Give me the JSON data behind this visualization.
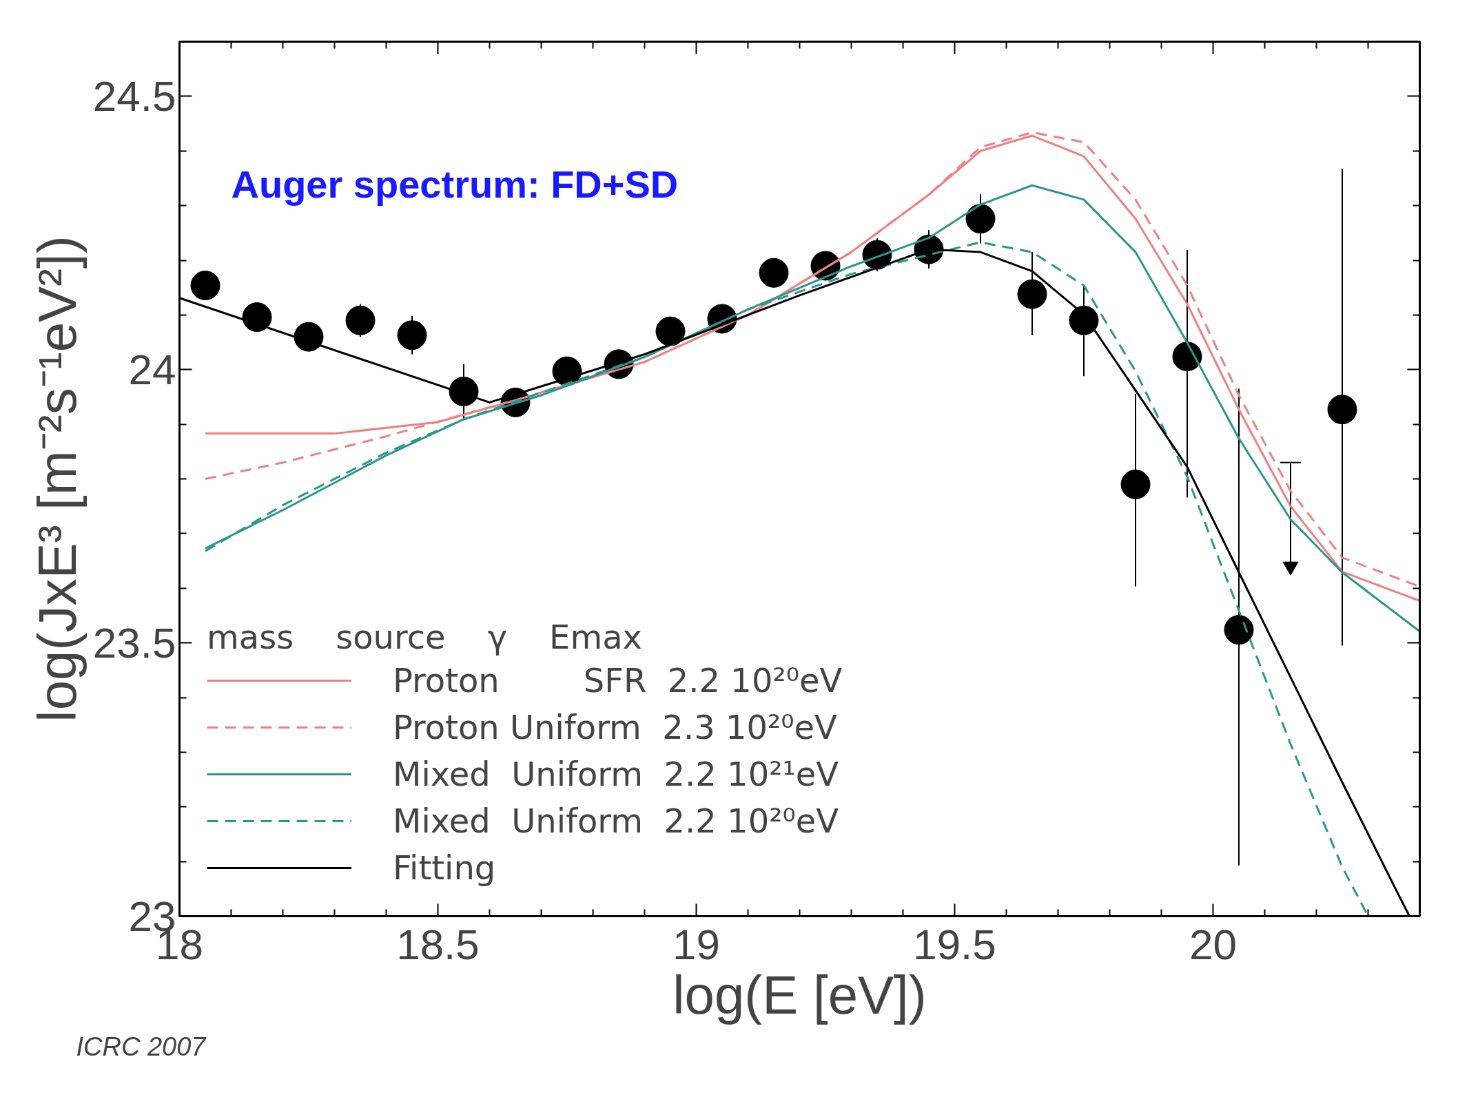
{
  "chart_data": {
    "type": "line",
    "title": null,
    "xlabel": "log(E [eV])",
    "ylabel": "log(JxE³ [m⁻²s⁻¹eV²])",
    "legend_title": "mass    source    γ    Emax",
    "annotations": [
      "Auger spectrum: FD+SD",
      "ICRC 2007"
    ],
    "xlim": [
      18,
      20.4
    ],
    "ylim": [
      23,
      24.6
    ],
    "xticks": [
      18,
      {
        "value": 18.1,
        "label": null
      },
      {
        "value": 18.2,
        "label": null
      },
      {
        "value": 18.3,
        "label": null
      },
      {
        "value": 18.4,
        "label": null
      },
      18.5,
      {
        "value": 18.6,
        "label": null
      },
      {
        "value": 18.7,
        "label": null
      },
      {
        "value": 18.8,
        "label": null
      },
      {
        "value": 18.9,
        "label": null
      },
      19,
      {
        "value": 19.1,
        "label": null
      },
      {
        "value": 19.2,
        "label": null
      },
      {
        "value": 19.3,
        "label": null
      },
      {
        "value": 19.4,
        "label": null
      },
      19.5,
      {
        "value": 19.6,
        "label": null
      },
      {
        "value": 19.7,
        "label": null
      },
      {
        "value": 19.8,
        "label": null
      },
      {
        "value": 19.9,
        "label": null
      },
      20,
      {
        "value": 20.1,
        "label": null
      },
      {
        "value": 20.2,
        "label": null
      },
      {
        "value": 20.3,
        "label": null
      }
    ],
    "yticks": [
      23,
      {
        "value": 23.1,
        "label": null
      },
      {
        "value": 23.2,
        "label": null
      },
      {
        "value": 23.3,
        "label": null
      },
      {
        "value": 23.4,
        "label": null
      },
      23.5,
      {
        "value": 23.6,
        "label": null
      },
      {
        "value": 23.7,
        "label": null
      },
      {
        "value": 23.8,
        "label": null
      },
      {
        "value": 23.9,
        "label": null
      },
      24,
      {
        "value": 24.1,
        "label": null
      },
      {
        "value": 24.2,
        "label": null
      },
      {
        "value": 24.3,
        "label": null
      },
      {
        "value": 24.4,
        "label": null
      },
      24.5
    ],
    "legend": "bottom left",
    "grid": false,
    "series": [
      {
        "name": "Proton        SFR  2.2 10²⁰eV",
        "line_style": "solid",
        "color": "#f08080",
        "x": [
          18.05,
          18.3,
          18.5,
          18.65,
          18.9,
          19.1,
          19.3,
          19.45,
          19.55,
          19.65,
          19.75,
          19.85,
          19.95,
          20.05,
          20.15,
          20.25,
          20.4
        ],
        "values": [
          23.883,
          23.883,
          23.904,
          23.944,
          24.014,
          24.1,
          24.215,
          24.32,
          24.4,
          24.428,
          24.39,
          24.276,
          24.12,
          23.927,
          23.75,
          23.63,
          23.577
        ]
      },
      {
        "name": "Proton Uniform  2.3 10²⁰eV",
        "line_style": "dashed",
        "color": "#f08080",
        "x": [
          18.05,
          18.2,
          18.4,
          18.55,
          18.65,
          18.9,
          19.1,
          19.3,
          19.45,
          19.55,
          19.65,
          19.75,
          19.85,
          19.95,
          20.05,
          20.15,
          20.25,
          20.4
        ],
        "values": [
          23.8,
          23.83,
          23.878,
          23.918,
          23.944,
          24.014,
          24.1,
          24.215,
          24.32,
          24.407,
          24.434,
          24.416,
          24.311,
          24.154,
          23.953,
          23.778,
          23.656,
          23.603
        ]
      },
      {
        "name": "Mixed  Uniform  2.2 10²¹eV",
        "line_style": "solid",
        "color": "#2a9690",
        "x": [
          18.05,
          18.2,
          18.4,
          18.55,
          18.7,
          18.9,
          19.1,
          19.3,
          19.45,
          19.55,
          19.65,
          19.75,
          19.85,
          19.95,
          20.05,
          20.15,
          20.25,
          20.4
        ],
        "values": [
          23.673,
          23.743,
          23.843,
          23.909,
          23.953,
          24.023,
          24.11,
          24.189,
          24.241,
          24.302,
          24.337,
          24.311,
          24.215,
          24.049,
          23.874,
          23.726,
          23.629,
          23.521
        ]
      },
      {
        "name": "Mixed  Uniform  2.2 10²⁰eV",
        "line_style": "dashed",
        "color": "#2a9690",
        "x": [
          18.05,
          18.2,
          18.4,
          18.55,
          18.7,
          18.9,
          19.1,
          19.3,
          19.45,
          19.55,
          19.65,
          19.75,
          19.85,
          19.95,
          20.05,
          20.15,
          20.25,
          20.3
        ],
        "values": [
          23.668,
          23.752,
          23.848,
          23.909,
          23.958,
          24.023,
          24.11,
          24.175,
          24.21,
          24.233,
          24.215,
          24.154,
          23.997,
          23.804,
          23.559,
          23.315,
          23.09,
          23.0
        ]
      },
      {
        "name": "Fitting",
        "line_style": "solid",
        "color": "#000000",
        "x": [
          18.0,
          18.6,
          18.9,
          19.2,
          19.45,
          19.55,
          19.65,
          19.75,
          19.85,
          19.95,
          20.05,
          20.15,
          20.25,
          20.35,
          20.38
        ],
        "values": [
          24.131,
          23.94,
          24.028,
          24.136,
          24.22,
          24.215,
          24.18,
          24.101,
          23.962,
          23.822,
          23.629,
          23.437,
          23.245,
          23.056,
          23.0
        ]
      },
      {
        "type": "scatter",
        "marker": "circle",
        "color": "#000000",
        "x": [
          18.05,
          18.15,
          18.25,
          18.35,
          18.45,
          18.55,
          18.65,
          18.75,
          18.85,
          18.95,
          19.05,
          19.15,
          19.25,
          19.35,
          19.45,
          19.55,
          19.65,
          19.75,
          19.85,
          19.95,
          20.05,
          20.25
        ],
        "values": [
          24.154,
          24.096,
          24.06,
          24.09,
          24.063,
          23.96,
          23.94,
          23.997,
          24.01,
          24.07,
          24.093,
          24.177,
          24.19,
          24.21,
          24.22,
          24.276,
          24.138,
          24.09,
          23.79,
          24.024,
          23.524,
          23.927
        ],
        "errors": [
          0.015,
          0.02,
          0.025,
          0.03,
          0.035,
          0.05,
          0.02,
          0.015,
          0.015,
          0.015,
          0.02,
          0.025,
          0.025,
          0.03,
          0.035,
          0.045,
          [
            24.063,
            24.215
          ],
          [
            23.988,
            24.154
          ],
          [
            23.603,
            23.956
          ],
          [
            23.766,
            24.219
          ],
          [
            23.093,
            23.965
          ],
          [
            23.495,
            24.367
          ]
        ]
      },
      {
        "type": "scatter",
        "marker": "triangle",
        "color": "#000000",
        "x": [
          20.15
        ],
        "values": [
          23.64
        ],
        "errors": [
          [
            23.64,
            23.83
          ]
        ]
      }
    ]
  }
}
